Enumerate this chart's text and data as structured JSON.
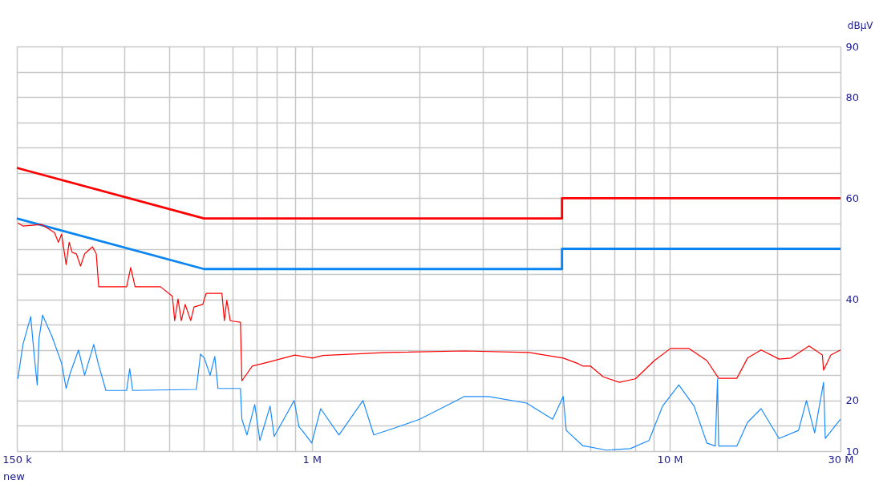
{
  "chart_data": {
    "type": "line",
    "ylabel": "dBµV",
    "annotations": [
      "new"
    ],
    "log": "x",
    "grid": true,
    "marker": "none",
    "line_style": "solid",
    "xlim": [
      0.15,
      30
    ],
    "xticks": [
      {
        "value": 0.15,
        "label": "150 k"
      },
      {
        "value": 0.2,
        "label": null
      },
      {
        "value": 0.3,
        "label": null
      },
      {
        "value": 0.4,
        "label": null
      },
      {
        "value": 0.5,
        "label": null
      },
      {
        "value": 0.6,
        "label": null
      },
      {
        "value": 0.7,
        "label": null
      },
      {
        "value": 0.8,
        "label": null
      },
      {
        "value": 0.9,
        "label": null
      },
      {
        "value": 1,
        "label": "1 M"
      },
      {
        "value": 2,
        "label": null
      },
      {
        "value": 3,
        "label": null
      },
      {
        "value": 4,
        "label": null
      },
      {
        "value": 5,
        "label": null
      },
      {
        "value": 6,
        "label": null
      },
      {
        "value": 7,
        "label": null
      },
      {
        "value": 8,
        "label": null
      },
      {
        "value": 9,
        "label": null
      },
      {
        "value": 10,
        "label": "10 M"
      },
      {
        "value": 20,
        "label": null
      },
      {
        "value": 30,
        "label": "30 M"
      }
    ],
    "ylim": [
      10,
      90
    ],
    "yticks": [
      10,
      {
        "value": 15,
        "label": null
      },
      20,
      {
        "value": 25,
        "label": null
      },
      {
        "value": 30,
        "label": null
      },
      {
        "value": 35,
        "label": null
      },
      40,
      {
        "value": 45,
        "label": null
      },
      {
        "value": 50,
        "label": null
      },
      {
        "value": 55,
        "label": null
      },
      60,
      {
        "value": 65,
        "label": null
      },
      {
        "value": 70,
        "label": null
      },
      {
        "value": 75,
        "label": null
      },
      80,
      {
        "value": 85,
        "label": null
      },
      90
    ],
    "series": [
      {
        "color": "#ff0000",
        "x": [
          0.15,
          0.5,
          5,
          5,
          30
        ],
        "values": [
          66,
          56,
          56,
          60,
          60
        ]
      },
      {
        "color": "#0a84f0",
        "x": [
          0.15,
          0.5,
          5,
          5,
          30
        ],
        "values": [
          56,
          46,
          46,
          50,
          50
        ]
      },
      {
        "color": "#ff0000",
        "x": [
          0.151,
          0.156,
          0.176,
          0.191,
          0.196,
          0.2,
          0.206,
          0.21,
          0.214,
          0.22,
          0.226,
          0.232,
          0.244,
          0.25,
          0.254,
          0.304,
          0.312,
          0.321,
          0.378,
          0.408,
          0.414,
          0.423,
          0.432,
          0.443,
          0.459,
          0.469,
          0.496,
          0.507,
          0.561,
          0.57,
          0.579,
          0.592,
          0.601,
          0.632,
          0.635,
          0.638,
          0.682,
          0.757,
          0.897,
          1.005,
          1.074,
          1.62,
          2.67,
          4.04,
          5.04,
          5.5,
          5.73,
          6.01,
          6.52,
          7.23,
          8.02,
          9.06,
          10.05,
          11.3,
          12.7,
          13.7,
          15.4,
          16.5,
          18.0,
          20.2,
          21.8,
          24.5,
          26.7,
          26.9,
          28.2,
          30
        ],
        "values": [
          55.1,
          54.5,
          54.8,
          53.2,
          51.3,
          52.9,
          46.9,
          51.3,
          49.3,
          49,
          46.6,
          49,
          50.4,
          49,
          42.5,
          42.5,
          46.3,
          42.5,
          42.5,
          40.6,
          35.8,
          40.1,
          35.8,
          39,
          35.8,
          38.5,
          39,
          41.2,
          41.2,
          35.8,
          39.8,
          35.8,
          35.7,
          35.5,
          29.8,
          23.9,
          26.8,
          27.6,
          29,
          28.4,
          28.9,
          29.5,
          29.8,
          29.5,
          28.4,
          27.4,
          26.8,
          26.8,
          24.7,
          23.6,
          24.3,
          27.9,
          30.3,
          30.3,
          27.9,
          24.4,
          24.4,
          28.4,
          30,
          28.2,
          28.4,
          30.8,
          29,
          26,
          29,
          30
        ]
      },
      {
        "color": "#1a8cff",
        "x": [
          0.151,
          0.156,
          0.164,
          0.168,
          0.171,
          0.173,
          0.177,
          0.188,
          0.2,
          0.206,
          0.211,
          0.223,
          0.232,
          0.246,
          0.253,
          0.266,
          0.304,
          0.31,
          0.316,
          0.476,
          0.489,
          0.501,
          0.52,
          0.536,
          0.547,
          0.632,
          0.638,
          0.659,
          0.693,
          0.716,
          0.765,
          0.785,
          0.893,
          0.921,
          0.94,
          1.0,
          1.059,
          1.191,
          1.39,
          1.49,
          1.74,
          2.0,
          2.29,
          2.67,
          3.12,
          3.98,
          4.71,
          5.04,
          5.14,
          5.73,
          5.79,
          6.65,
          7.76,
          8.75,
          9.55,
          10.6,
          11.7,
          12.7,
          13.4,
          13.6,
          13.7,
          15.4,
          16.5,
          18.0,
          20.2,
          22.9,
          24.1,
          25.4,
          26.9,
          27.2,
          30
        ],
        "values": [
          24.3,
          31.1,
          36.6,
          28.4,
          23.1,
          32.2,
          36.9,
          32.7,
          27.4,
          22.4,
          25.2,
          30,
          25,
          31.1,
          27.4,
          22,
          22,
          26.3,
          22,
          22.2,
          29.2,
          28.4,
          25,
          28.7,
          22.4,
          22.4,
          16.3,
          13.2,
          19.2,
          12.1,
          18.9,
          12.9,
          20,
          14.8,
          14.1,
          11.6,
          18.4,
          13.2,
          20,
          13.2,
          14.8,
          16.3,
          18.4,
          20.8,
          20.8,
          19.5,
          16.3,
          20.8,
          14.1,
          11,
          11,
          10.2,
          10.5,
          12.1,
          18.9,
          23.1,
          18.9,
          11.6,
          11,
          24.3,
          11,
          11,
          15.7,
          18.4,
          12.5,
          14.1,
          20,
          13.6,
          23.6,
          12.5,
          16.3
        ]
      }
    ]
  }
}
